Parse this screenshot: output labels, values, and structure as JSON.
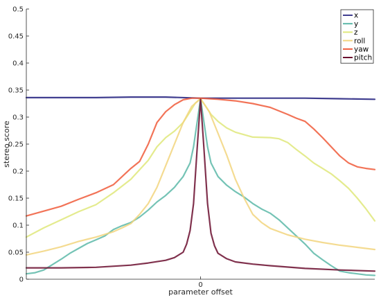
{
  "chart_data": {
    "type": "line",
    "title": "",
    "xlabel": "parameter offset",
    "ylabel": "stereo score",
    "xlim": [
      -100,
      100
    ],
    "ylim": [
      0,
      0.5
    ],
    "xticks": [
      {
        "value": 0,
        "label": "0"
      }
    ],
    "yticks": [
      {
        "value": 0,
        "label": "0"
      },
      {
        "value": 0.05,
        "label": "0.05"
      },
      {
        "value": 0.1,
        "label": "0.1"
      },
      {
        "value": 0.15,
        "label": "0.15"
      },
      {
        "value": 0.2,
        "label": "0.2"
      },
      {
        "value": 0.25,
        "label": "0.25"
      },
      {
        "value": 0.3,
        "label": "0.3"
      },
      {
        "value": 0.35,
        "label": "0.35"
      },
      {
        "value": 0.4,
        "label": "0.4"
      },
      {
        "value": 0.45,
        "label": "0.45"
      },
      {
        "value": 0.5,
        "label": "0.5"
      }
    ],
    "grid": false,
    "legend_position": "top-right",
    "series": [
      {
        "name": "x",
        "color": "#3f3d8f",
        "x": [
          -100,
          -80,
          -60,
          -40,
          -20,
          0,
          20,
          40,
          60,
          80,
          100
        ],
        "y": [
          0.336,
          0.336,
          0.336,
          0.337,
          0.337,
          0.335,
          0.335,
          0.335,
          0.335,
          0.334,
          0.333
        ]
      },
      {
        "name": "y",
        "color": "#5cb8a8",
        "x": [
          -100,
          -95,
          -90,
          -85,
          -80,
          -75,
          -70,
          -65,
          -60,
          -55,
          -50,
          -45,
          -40,
          -35,
          -30,
          -25,
          -20,
          -15,
          -10,
          -6,
          -4,
          -2,
          0,
          2,
          4,
          6,
          10,
          15,
          20,
          25,
          30,
          35,
          40,
          45,
          50,
          55,
          60,
          65,
          70,
          75,
          80,
          85,
          90,
          95,
          100
        ],
        "y": [
          0.01,
          0.012,
          0.017,
          0.027,
          0.037,
          0.048,
          0.057,
          0.066,
          0.073,
          0.08,
          0.092,
          0.099,
          0.105,
          0.115,
          0.128,
          0.143,
          0.155,
          0.17,
          0.19,
          0.215,
          0.245,
          0.29,
          0.334,
          0.29,
          0.245,
          0.215,
          0.19,
          0.174,
          0.162,
          0.152,
          0.14,
          0.13,
          0.122,
          0.11,
          0.095,
          0.08,
          0.065,
          0.048,
          0.036,
          0.025,
          0.015,
          0.012,
          0.01,
          0.008,
          0.007
        ]
      },
      {
        "name": "z",
        "color": "#dfe87a",
        "x": [
          -100,
          -90,
          -80,
          -70,
          -60,
          -50,
          -40,
          -30,
          -25,
          -20,
          -15,
          -10,
          -6,
          -3,
          0,
          3,
          6,
          10,
          15,
          20,
          30,
          40,
          45,
          50,
          55,
          60,
          65,
          70,
          75,
          80,
          85,
          90,
          95,
          100
        ],
        "y": [
          0.078,
          0.095,
          0.11,
          0.125,
          0.138,
          0.16,
          0.185,
          0.22,
          0.245,
          0.262,
          0.274,
          0.29,
          0.31,
          0.326,
          0.334,
          0.32,
          0.305,
          0.292,
          0.28,
          0.272,
          0.263,
          0.262,
          0.26,
          0.253,
          0.24,
          0.228,
          0.215,
          0.205,
          0.195,
          0.182,
          0.168,
          0.15,
          0.13,
          0.108
        ]
      },
      {
        "name": "roll",
        "color": "#f2d57e",
        "x": [
          -100,
          -90,
          -80,
          -70,
          -60,
          -50,
          -45,
          -40,
          -35,
          -30,
          -25,
          -20,
          -15,
          -10,
          -5,
          0,
          5,
          10,
          15,
          20,
          25,
          30,
          35,
          40,
          50,
          60,
          70,
          80,
          90,
          100
        ],
        "y": [
          0.045,
          0.052,
          0.06,
          0.07,
          0.078,
          0.088,
          0.095,
          0.103,
          0.12,
          0.14,
          0.17,
          0.21,
          0.25,
          0.29,
          0.32,
          0.334,
          0.31,
          0.27,
          0.23,
          0.185,
          0.15,
          0.12,
          0.105,
          0.094,
          0.082,
          0.074,
          0.068,
          0.063,
          0.059,
          0.055
        ]
      },
      {
        "name": "yaw",
        "color": "#f05b3a",
        "x": [
          -100,
          -90,
          -80,
          -70,
          -60,
          -50,
          -45,
          -40,
          -35,
          -30,
          -25,
          -20,
          -15,
          -10,
          -5,
          0,
          5,
          10,
          20,
          30,
          40,
          50,
          55,
          60,
          65,
          70,
          75,
          80,
          85,
          90,
          95,
          100
        ],
        "y": [
          0.117,
          0.126,
          0.135,
          0.148,
          0.16,
          0.175,
          0.19,
          0.205,
          0.218,
          0.25,
          0.29,
          0.31,
          0.323,
          0.332,
          0.335,
          0.335,
          0.334,
          0.333,
          0.33,
          0.325,
          0.318,
          0.305,
          0.298,
          0.292,
          0.278,
          0.262,
          0.245,
          0.228,
          0.215,
          0.208,
          0.205,
          0.203
        ]
      },
      {
        "name": "pitch",
        "color": "#6a0d2e",
        "x": [
          -100,
          -80,
          -60,
          -40,
          -30,
          -20,
          -15,
          -10,
          -8,
          -6,
          -4,
          -2,
          0,
          2,
          4,
          6,
          8,
          10,
          15,
          20,
          30,
          40,
          60,
          80,
          100
        ],
        "y": [
          0.021,
          0.021,
          0.022,
          0.026,
          0.03,
          0.035,
          0.04,
          0.05,
          0.065,
          0.09,
          0.14,
          0.24,
          0.333,
          0.24,
          0.14,
          0.085,
          0.062,
          0.048,
          0.038,
          0.032,
          0.028,
          0.025,
          0.02,
          0.017,
          0.015
        ]
      }
    ]
  }
}
